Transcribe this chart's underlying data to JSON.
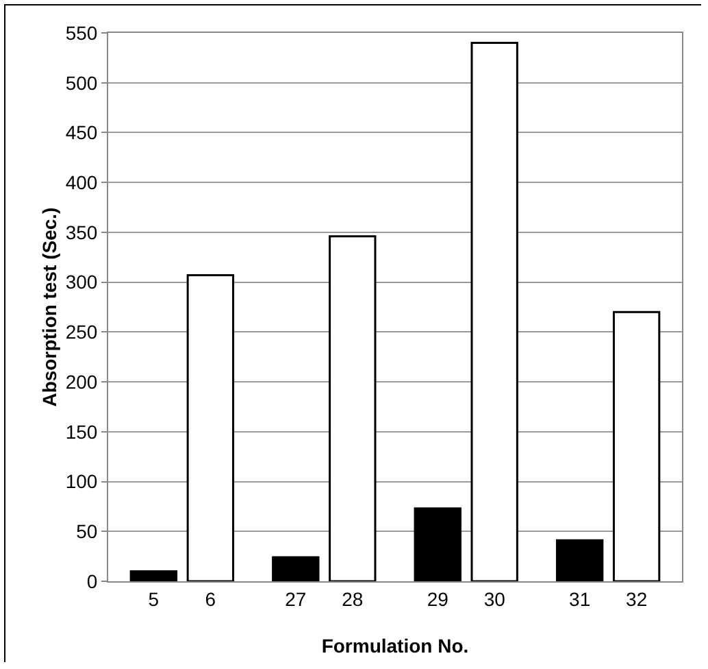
{
  "chart_data": {
    "type": "bar",
    "xlabel": "Formulation No.",
    "ylabel": "Absorption test (Sec.)",
    "categories": [
      "5",
      "6",
      "27",
      "28",
      "29",
      "30",
      "31",
      "32"
    ],
    "values": [
      10,
      307,
      24,
      346,
      73,
      540,
      41,
      270
    ],
    "colors": [
      "#000000",
      "#ffffff",
      "#000000",
      "#ffffff",
      "#000000",
      "#ffffff",
      "#000000",
      "#ffffff"
    ],
    "ylim": [
      0,
      550
    ],
    "yticks": [
      0,
      50,
      100,
      150,
      200,
      250,
      300,
      350,
      400,
      450,
      500,
      550
    ],
    "grid": "y"
  }
}
